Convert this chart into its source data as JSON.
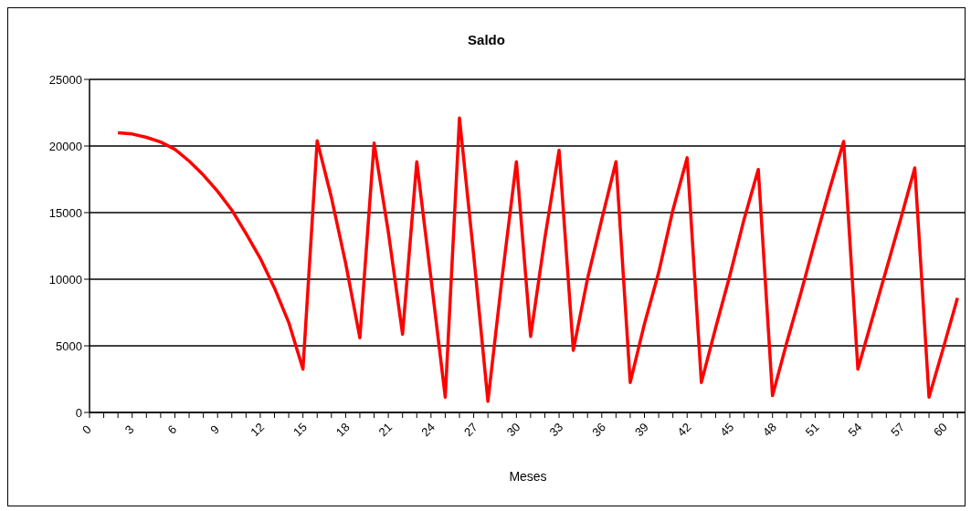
{
  "chart_data": {
    "type": "line",
    "title": "Saldo",
    "xlabel": "Meses",
    "x": [
      2,
      3,
      4,
      5,
      6,
      7,
      8,
      9,
      10,
      11,
      12,
      13,
      14,
      15,
      16,
      17,
      18,
      19,
      20,
      21,
      22,
      23,
      24,
      25,
      26,
      27,
      28,
      29,
      30,
      31,
      32,
      33,
      34,
      35,
      36,
      37,
      38,
      39,
      40,
      41,
      42,
      43,
      44,
      45,
      46,
      47,
      48,
      49,
      50,
      51,
      52,
      53,
      54,
      55,
      56,
      57,
      58,
      59,
      60,
      61
    ],
    "series": [
      {
        "color": "#ff0000",
        "values": [
          21000,
          20900,
          20650,
          20300,
          19750,
          18870,
          17820,
          16600,
          15190,
          13430,
          11570,
          9340,
          6760,
          3250,
          20390,
          16130,
          11210,
          5600,
          20220,
          13550,
          5880,
          18820,
          10040,
          1150,
          22100,
          11800,
          840,
          10160,
          18820,
          5710,
          13080,
          19680,
          4660,
          10040,
          14490,
          18820,
          2250,
          6650,
          10510,
          15190,
          19120,
          2250,
          6340,
          10270,
          14490,
          18240,
          1260,
          5240,
          8990,
          12920,
          16710,
          20340,
          3250,
          7000,
          10740,
          14490,
          18350,
          1150,
          4820,
          8590
        ]
      }
    ],
    "xlim": [
      0,
      61.5
    ],
    "xticks": [
      0,
      {
        "value": 1,
        "label": null
      },
      {
        "value": 2,
        "label": null
      },
      3,
      {
        "value": 4,
        "label": null
      },
      {
        "value": 5,
        "label": null
      },
      6,
      {
        "value": 7,
        "label": null
      },
      {
        "value": 8,
        "label": null
      },
      9,
      {
        "value": 10,
        "label": null
      },
      {
        "value": 11,
        "label": null
      },
      12,
      {
        "value": 13,
        "label": null
      },
      {
        "value": 14,
        "label": null
      },
      15,
      {
        "value": 16,
        "label": null
      },
      {
        "value": 17,
        "label": null
      },
      18,
      {
        "value": 19,
        "label": null
      },
      {
        "value": 20,
        "label": null
      },
      21,
      {
        "value": 22,
        "label": null
      },
      {
        "value": 23,
        "label": null
      },
      24,
      {
        "value": 25,
        "label": null
      },
      {
        "value": 26,
        "label": null
      },
      27,
      {
        "value": 28,
        "label": null
      },
      {
        "value": 29,
        "label": null
      },
      30,
      {
        "value": 31,
        "label": null
      },
      {
        "value": 32,
        "label": null
      },
      33,
      {
        "value": 34,
        "label": null
      },
      {
        "value": 35,
        "label": null
      },
      36,
      {
        "value": 37,
        "label": null
      },
      {
        "value": 38,
        "label": null
      },
      39,
      {
        "value": 40,
        "label": null
      },
      {
        "value": 41,
        "label": null
      },
      42,
      {
        "value": 43,
        "label": null
      },
      {
        "value": 44,
        "label": null
      },
      45,
      {
        "value": 46,
        "label": null
      },
      {
        "value": 47,
        "label": null
      },
      48,
      {
        "value": 49,
        "label": null
      },
      {
        "value": 50,
        "label": null
      },
      51,
      {
        "value": 52,
        "label": null
      },
      {
        "value": 53,
        "label": null
      },
      54,
      {
        "value": 55,
        "label": null
      },
      {
        "value": 56,
        "label": null
      },
      57,
      {
        "value": 58,
        "label": null
      },
      {
        "value": 59,
        "label": null
      },
      60,
      {
        "value": 61,
        "label": null
      }
    ],
    "ylim": [
      0,
      25000
    ],
    "yticks": [
      0,
      5000,
      10000,
      15000,
      20000,
      25000
    ],
    "grid": "y",
    "legend": false,
    "line_style": "solid"
  }
}
